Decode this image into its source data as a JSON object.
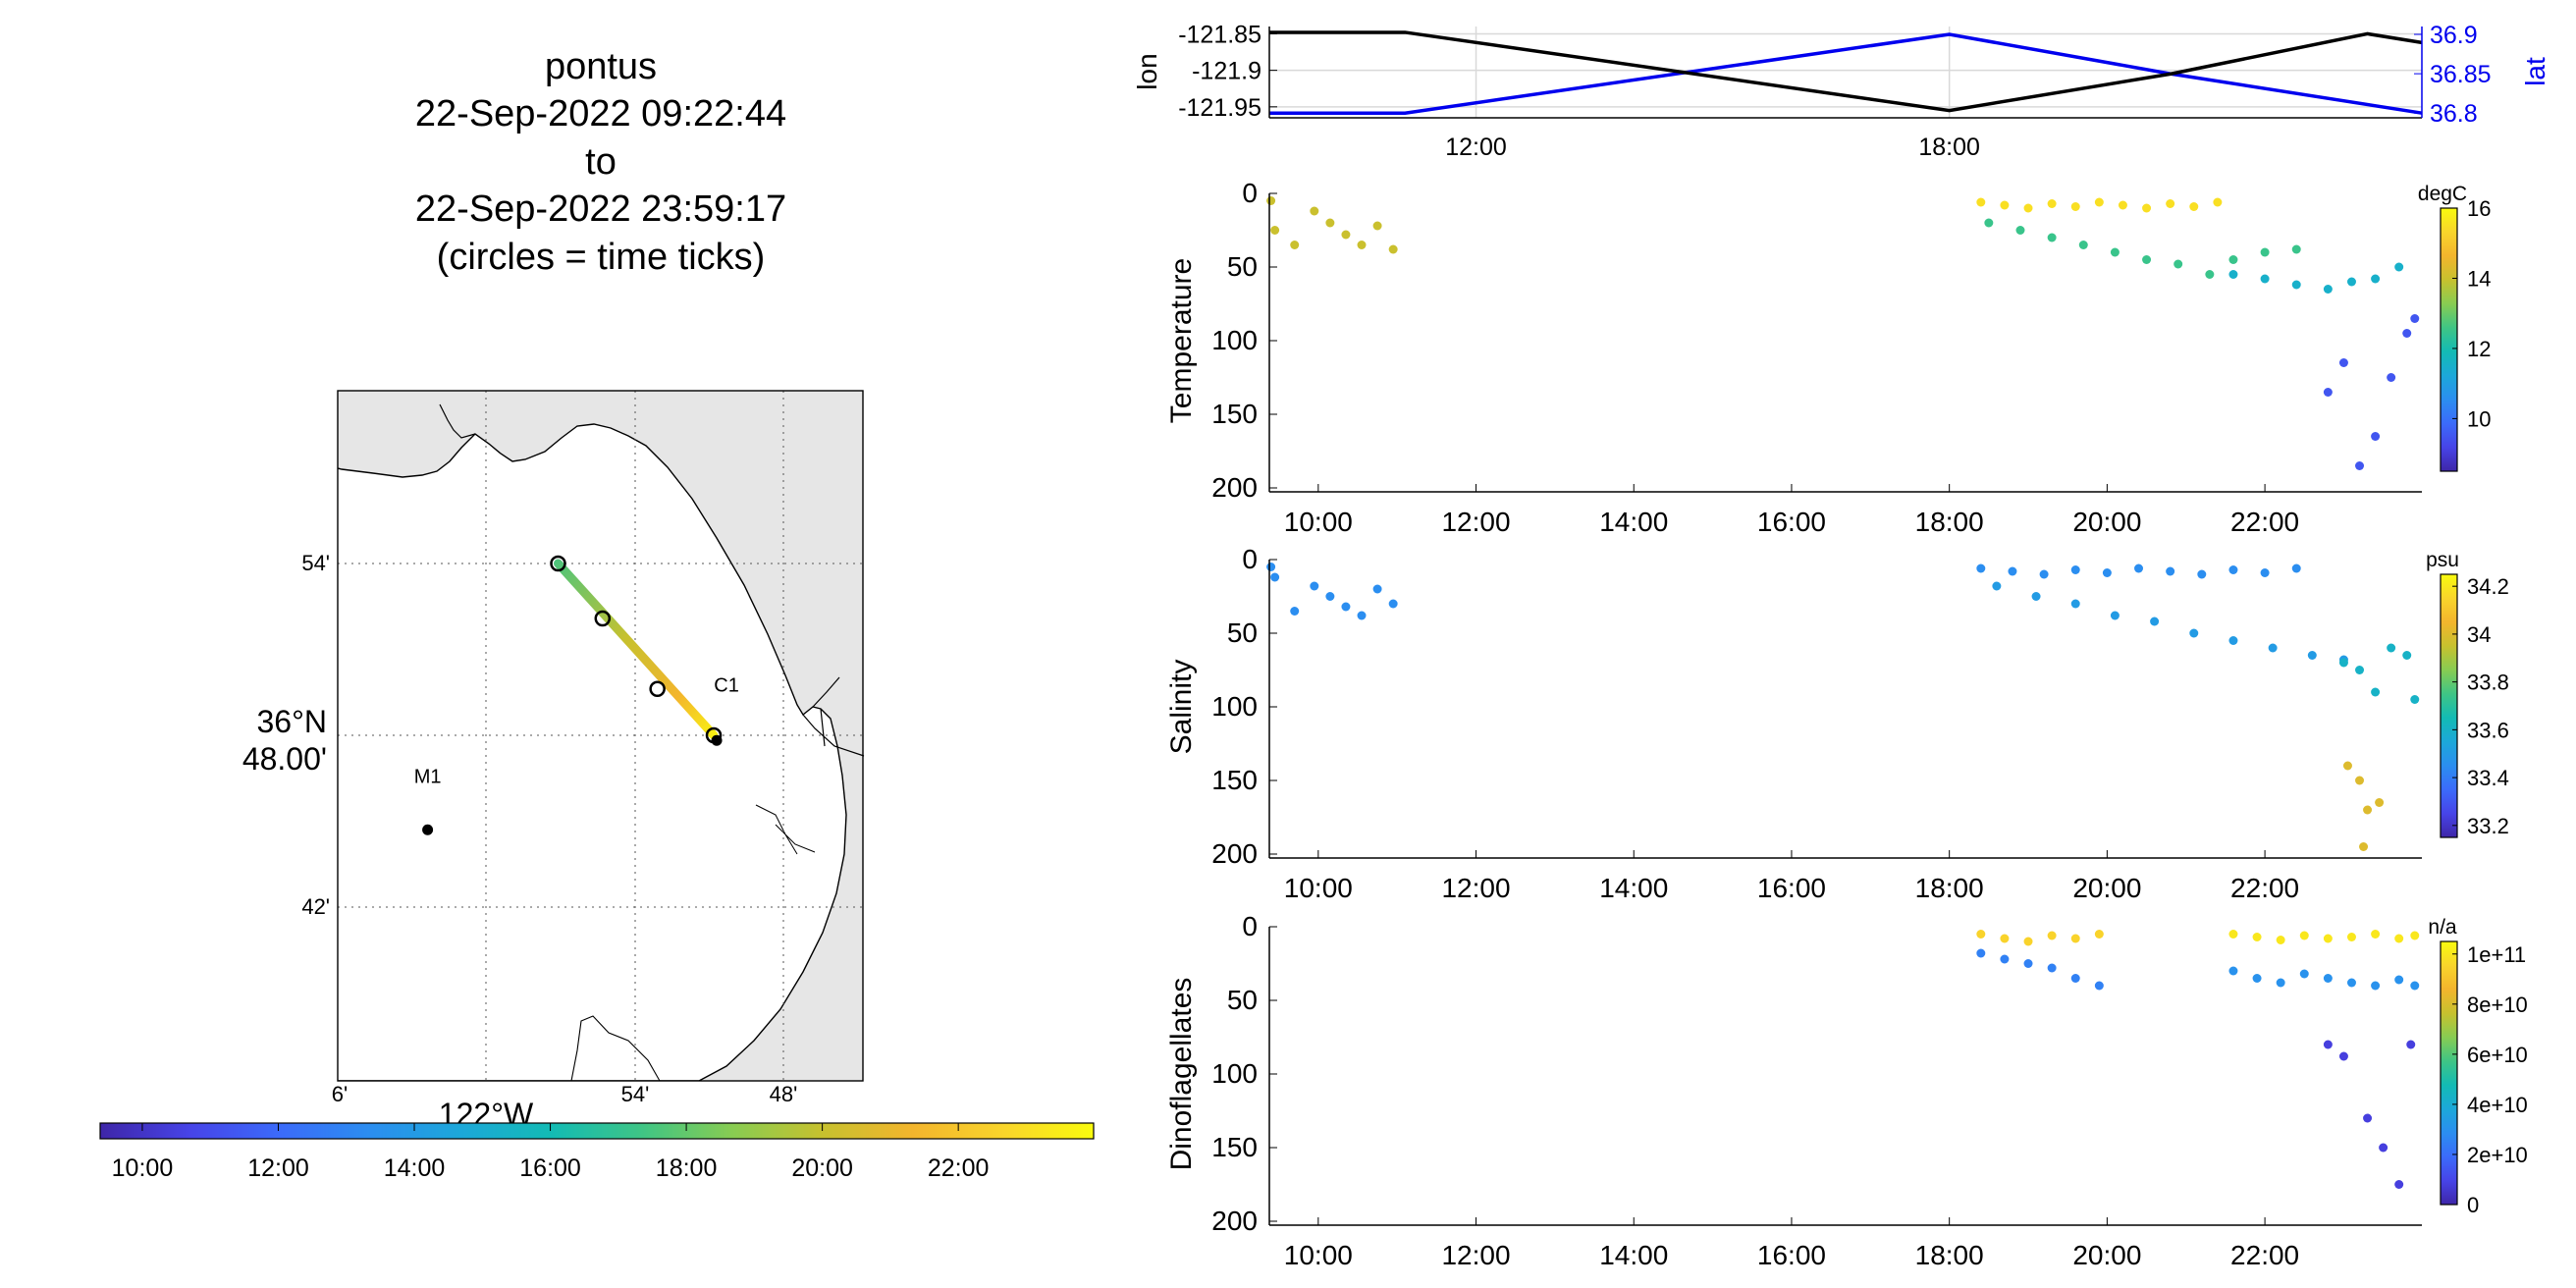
{
  "title": {
    "lines": [
      "pontus",
      "22-Sep-2022 09:22:44",
      "to",
      "22-Sep-2022 23:59:17",
      "(circles = time ticks)"
    ]
  },
  "map": {
    "lat_labels": [
      "54'",
      "42'"
    ],
    "center_lat_label": [
      "36°N",
      "48.00'"
    ],
    "lon_labels": [
      "6'",
      "54'",
      "48'"
    ],
    "center_lon_label": "122°W",
    "stations": [
      {
        "name": "M1",
        "lon": -122.04,
        "lat": 36.745
      },
      {
        "name": "C1",
        "lon": -121.845,
        "lat": 36.797
      }
    ],
    "track": {
      "start": {
        "lon": -121.952,
        "lat": 36.9
      },
      "end": {
        "lon": -121.847,
        "lat": 36.8
      },
      "tick_circles": [
        {
          "lon": -121.952,
          "lat": 36.9
        },
        {
          "lon": -121.922,
          "lat": 36.868
        },
        {
          "lon": -121.885,
          "lat": 36.827
        },
        {
          "lon": -121.847,
          "lat": 36.8
        }
      ]
    }
  },
  "time_colorbar": {
    "ticks": [
      "10:00",
      "12:00",
      "14:00",
      "16:00",
      "18:00",
      "20:00",
      "22:00"
    ]
  },
  "colors": {
    "lon_line": "#000000",
    "lat_line": "#0000ee",
    "map_land": "#e6e6e6",
    "parula": [
      "#3e26a8",
      "#4744e8",
      "#3b6bfa",
      "#2b8ef0",
      "#1ca8d9",
      "#13bbb4",
      "#3fc585",
      "#88cc52",
      "#c7c12e",
      "#f3b52d",
      "#f9d52b",
      "#f9fb0e"
    ]
  },
  "chart_data": [
    {
      "type": "line",
      "title": "",
      "xlabel": "",
      "x_ticks": [
        "12:00",
        "18:00"
      ],
      "series": [
        {
          "name": "lon",
          "axis": "left",
          "ylim": [
            -121.965,
            -121.84
          ],
          "ticks": [
            "-121.85",
            "-121.9",
            "-121.95"
          ],
          "x": [
            9.38,
            11.1,
            18.0,
            20.8,
            23.3,
            23.99
          ],
          "values": [
            -121.848,
            -121.848,
            -121.955,
            -121.905,
            -121.85,
            -121.862
          ]
        },
        {
          "name": "lat",
          "axis": "right",
          "ylim": [
            36.794,
            36.91
          ],
          "ticks": [
            "36.9",
            "36.85",
            "36.8"
          ],
          "x": [
            9.38,
            11.1,
            18.0,
            20.8,
            23.99
          ],
          "values": [
            36.8,
            36.8,
            36.9,
            36.85,
            36.8
          ]
        }
      ]
    },
    {
      "type": "scatter",
      "ylabel": "Temperature",
      "colorbar_unit": "degC",
      "colorbar_ticks": [
        "16",
        "14",
        "12",
        "10"
      ],
      "clim": [
        8.5,
        16
      ],
      "ylim": [
        0,
        200
      ],
      "y_ticks": [
        "0",
        "50",
        "100",
        "150",
        "200"
      ],
      "x_ticks": [
        "10:00",
        "12:00",
        "14:00",
        "16:00",
        "18:00",
        "20:00",
        "22:00"
      ],
      "xlim": [
        9.38,
        23.99
      ],
      "groups": [
        {
          "t": [
            9.4,
            9.45,
            9.7,
            9.95,
            10.15,
            10.35,
            10.55,
            10.75,
            10.95
          ],
          "d": [
            5,
            25,
            35,
            12,
            20,
            28,
            35,
            22,
            38
          ],
          "c": 14
        },
        {
          "t": [
            18.4,
            18.7,
            19.0,
            19.3,
            19.6,
            19.9,
            20.2,
            20.5,
            20.8,
            21.1,
            21.4
          ],
          "d": [
            6,
            8,
            10,
            7,
            9,
            6,
            8,
            10,
            7,
            9,
            6
          ],
          "c": 15.5
        },
        {
          "t": [
            18.5,
            18.9,
            19.3,
            19.7,
            20.1,
            20.5,
            20.9,
            21.3,
            21.6,
            22.0,
            22.4
          ],
          "d": [
            20,
            25,
            30,
            35,
            40,
            45,
            48,
            55,
            45,
            40,
            38
          ],
          "c": 12.5
        },
        {
          "t": [
            21.6,
            22.0,
            22.4,
            22.8,
            23.1,
            23.4,
            23.7
          ],
          "d": [
            55,
            58,
            62,
            65,
            60,
            58,
            50
          ],
          "c": 11.5
        },
        {
          "t": [
            22.8,
            23.0,
            23.2,
            23.4,
            23.6,
            23.8,
            23.9
          ],
          "d": [
            135,
            115,
            185,
            165,
            125,
            95,
            85
          ],
          "c": 9.5
        }
      ]
    },
    {
      "type": "scatter",
      "ylabel": "Salinity",
      "colorbar_unit": "psu",
      "colorbar_ticks": [
        "34.2",
        "34",
        "33.8",
        "33.6",
        "33.4",
        "33.2"
      ],
      "clim": [
        33.15,
        34.25
      ],
      "ylim": [
        0,
        200
      ],
      "y_ticks": [
        "0",
        "50",
        "100",
        "150",
        "200"
      ],
      "x_ticks": [
        "10:00",
        "12:00",
        "14:00",
        "16:00",
        "18:00",
        "20:00",
        "22:00"
      ],
      "xlim": [
        9.38,
        23.99
      ],
      "groups": [
        {
          "t": [
            9.4,
            9.45,
            9.7,
            9.95,
            10.15,
            10.35,
            10.55,
            10.75,
            10.95
          ],
          "d": [
            5,
            12,
            35,
            18,
            25,
            32,
            38,
            20,
            30
          ],
          "c": 33.45
        },
        {
          "t": [
            18.4,
            18.8,
            19.2,
            19.6,
            20.0,
            20.4,
            20.8,
            21.2,
            21.6,
            22.0,
            22.4
          ],
          "d": [
            6,
            8,
            10,
            7,
            9,
            6,
            8,
            10,
            7,
            9,
            6
          ],
          "c": 33.45
        },
        {
          "t": [
            18.6,
            19.1,
            19.6,
            20.1,
            20.6,
            21.1,
            21.6,
            22.1,
            22.6,
            23.0
          ],
          "d": [
            18,
            25,
            30,
            38,
            42,
            50,
            55,
            60,
            65,
            68
          ],
          "c": 33.5
        },
        {
          "t": [
            23.0,
            23.2,
            23.4,
            23.6,
            23.8,
            23.9
          ],
          "d": [
            70,
            75,
            90,
            60,
            65,
            95
          ],
          "c": 33.6
        },
        {
          "t": [
            23.05,
            23.2,
            23.3,
            23.45,
            23.25
          ],
          "d": [
            140,
            150,
            170,
            165,
            195
          ],
          "c": 34.0
        }
      ]
    },
    {
      "type": "scatter",
      "ylabel": "Dinoflagellates",
      "colorbar_unit": "n/a",
      "colorbar_ticks": [
        "1e+11",
        "8e+10",
        "6e+10",
        "4e+10",
        "2e+10",
        "0"
      ],
      "clim": [
        0,
        105000000000.0
      ],
      "ylim": [
        0,
        200
      ],
      "y_ticks": [
        "0",
        "50",
        "100",
        "150",
        "200"
      ],
      "x_ticks": [
        "10:00",
        "12:00",
        "14:00",
        "16:00",
        "18:00",
        "20:00",
        "22:00"
      ],
      "xlim": [
        9.38,
        23.99
      ],
      "groups": [
        {
          "t": [
            18.4,
            18.7,
            19.0,
            19.3,
            19.6,
            19.9
          ],
          "d": [
            5,
            8,
            10,
            6,
            8,
            5
          ],
          "c": 95000000000.0
        },
        {
          "t": [
            18.4,
            18.7,
            19.0,
            19.3,
            19.6,
            19.9
          ],
          "d": [
            18,
            22,
            25,
            28,
            35,
            40
          ],
          "c": 25000000000.0
        },
        {
          "t": [
            21.6,
            21.9,
            22.2,
            22.5,
            22.8,
            23.1,
            23.4,
            23.7,
            23.9
          ],
          "d": [
            5,
            7,
            9,
            6,
            8,
            7,
            5,
            8,
            6
          ],
          "c": 100000000000.0
        },
        {
          "t": [
            21.6,
            21.9,
            22.2,
            22.5,
            22.8,
            23.1,
            23.4,
            23.7,
            23.9
          ],
          "d": [
            30,
            35,
            38,
            32,
            35,
            38,
            40,
            36,
            40
          ],
          "c": 30000000000.0
        },
        {
          "t": [
            22.8,
            23.0,
            23.3,
            23.5,
            23.7,
            23.85
          ],
          "d": [
            80,
            88,
            130,
            150,
            175,
            80
          ],
          "c": 8000000000.0
        }
      ]
    }
  ]
}
